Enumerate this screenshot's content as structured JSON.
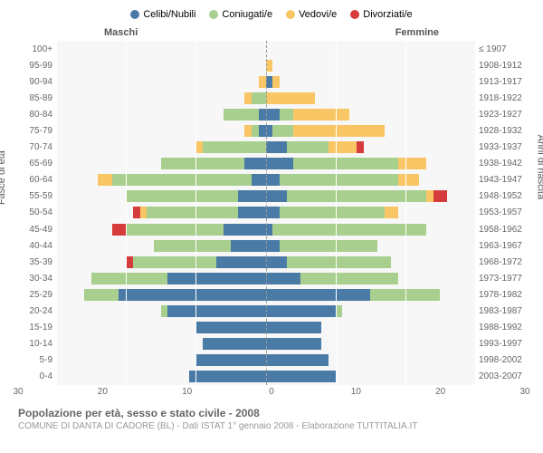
{
  "legend": [
    {
      "label": "Celibi/Nubili",
      "color": "#4a7ba6"
    },
    {
      "label": "Coniugati/e",
      "color": "#a8cf8e"
    },
    {
      "label": "Vedovi/e",
      "color": "#f9c666"
    },
    {
      "label": "Divorziati/e",
      "color": "#d73c3c"
    }
  ],
  "headers": {
    "male": "Maschi",
    "female": "Femmine"
  },
  "yLabels": {
    "left": "Fasce di età",
    "right": "Anni di nascita"
  },
  "ageGroups": [
    "100+",
    "95-99",
    "90-94",
    "85-89",
    "80-84",
    "75-79",
    "70-74",
    "65-69",
    "60-64",
    "55-59",
    "50-54",
    "45-49",
    "40-44",
    "35-39",
    "30-34",
    "25-29",
    "20-24",
    "15-19",
    "10-14",
    "5-9",
    "0-4"
  ],
  "birthYears": [
    "≤ 1907",
    "1908-1912",
    "1913-1917",
    "1918-1922",
    "1923-1927",
    "1928-1932",
    "1933-1937",
    "1938-1942",
    "1943-1947",
    "1948-1952",
    "1953-1957",
    "1958-1962",
    "1963-1967",
    "1968-1972",
    "1973-1977",
    "1978-1982",
    "1983-1987",
    "1988-1992",
    "1993-1997",
    "1998-2002",
    "2003-2007"
  ],
  "xMax": 30,
  "xTicks": [
    30,
    20,
    10,
    0,
    10,
    20,
    30
  ],
  "colors": {
    "celibi": "#4a7ba6",
    "coniugati": "#a8cf8e",
    "vedovi": "#f9c666",
    "divorziati": "#d73c3c",
    "bg": "#f7f7f7",
    "grid": "#ffffff"
  },
  "maleData": [
    {
      "c": 0,
      "m": 0,
      "w": 0,
      "d": 0
    },
    {
      "c": 0,
      "m": 0,
      "w": 0,
      "d": 0
    },
    {
      "c": 0,
      "m": 0,
      "w": 1,
      "d": 0
    },
    {
      "c": 0,
      "m": 2,
      "w": 1,
      "d": 0
    },
    {
      "c": 1,
      "m": 5,
      "w": 0,
      "d": 0
    },
    {
      "c": 1,
      "m": 1,
      "w": 1,
      "d": 0
    },
    {
      "c": 0,
      "m": 9,
      "w": 1,
      "d": 0
    },
    {
      "c": 3,
      "m": 12,
      "w": 0,
      "d": 0
    },
    {
      "c": 2,
      "m": 20,
      "w": 2,
      "d": 0
    },
    {
      "c": 4,
      "m": 16,
      "w": 0,
      "d": 0
    },
    {
      "c": 4,
      "m": 13,
      "w": 1,
      "d": 1
    },
    {
      "c": 6,
      "m": 14,
      "w": 0,
      "d": 2
    },
    {
      "c": 5,
      "m": 11,
      "w": 0,
      "d": 0
    },
    {
      "c": 7,
      "m": 12,
      "w": 0,
      "d": 1
    },
    {
      "c": 14,
      "m": 11,
      "w": 0,
      "d": 0
    },
    {
      "c": 21,
      "m": 5,
      "w": 0,
      "d": 0
    },
    {
      "c": 14,
      "m": 1,
      "w": 0,
      "d": 0
    },
    {
      "c": 10,
      "m": 0,
      "w": 0,
      "d": 0
    },
    {
      "c": 9,
      "m": 0,
      "w": 0,
      "d": 0
    },
    {
      "c": 10,
      "m": 0,
      "w": 0,
      "d": 0
    },
    {
      "c": 11,
      "m": 0,
      "w": 0,
      "d": 0
    }
  ],
  "femaleData": [
    {
      "c": 0,
      "m": 0,
      "w": 0,
      "d": 0
    },
    {
      "c": 0,
      "m": 0,
      "w": 1,
      "d": 0
    },
    {
      "c": 1,
      "m": 0,
      "w": 1,
      "d": 0
    },
    {
      "c": 0,
      "m": 0,
      "w": 7,
      "d": 0
    },
    {
      "c": 2,
      "m": 2,
      "w": 8,
      "d": 0
    },
    {
      "c": 1,
      "m": 3,
      "w": 13,
      "d": 0
    },
    {
      "c": 3,
      "m": 6,
      "w": 4,
      "d": 1
    },
    {
      "c": 4,
      "m": 15,
      "w": 4,
      "d": 0
    },
    {
      "c": 2,
      "m": 17,
      "w": 3,
      "d": 0
    },
    {
      "c": 3,
      "m": 20,
      "w": 1,
      "d": 2
    },
    {
      "c": 2,
      "m": 15,
      "w": 2,
      "d": 0
    },
    {
      "c": 1,
      "m": 22,
      "w": 0,
      "d": 0
    },
    {
      "c": 2,
      "m": 14,
      "w": 0,
      "d": 0
    },
    {
      "c": 3,
      "m": 15,
      "w": 0,
      "d": 0
    },
    {
      "c": 5,
      "m": 14,
      "w": 0,
      "d": 0
    },
    {
      "c": 15,
      "m": 10,
      "w": 0,
      "d": 0
    },
    {
      "c": 10,
      "m": 1,
      "w": 0,
      "d": 0
    },
    {
      "c": 8,
      "m": 0,
      "w": 0,
      "d": 0
    },
    {
      "c": 8,
      "m": 0,
      "w": 0,
      "d": 0
    },
    {
      "c": 9,
      "m": 0,
      "w": 0,
      "d": 0
    },
    {
      "c": 10,
      "m": 0,
      "w": 0,
      "d": 0
    }
  ],
  "footer": {
    "title": "Popolazione per età, sesso e stato civile - 2008",
    "sub": "COMUNE DI DANTA DI CADORE (BL) - Dati ISTAT 1° gennaio 2008 - Elaborazione TUTTITALIA.IT"
  }
}
